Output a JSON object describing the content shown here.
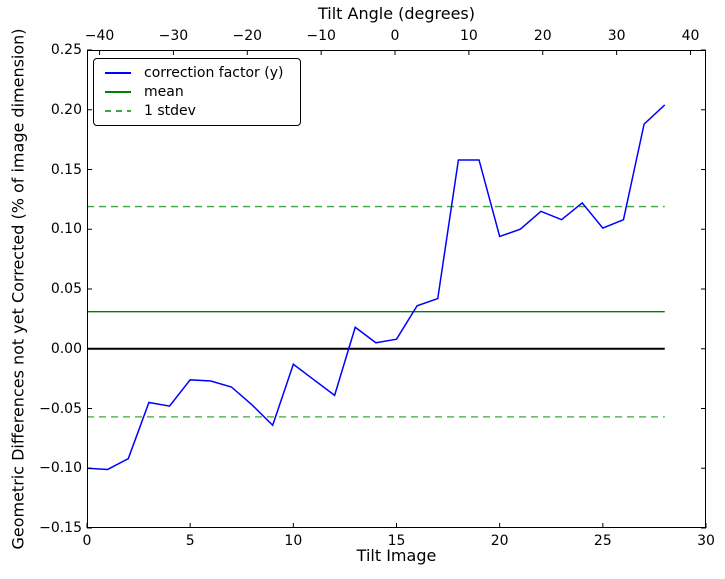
{
  "figure": {
    "top_axis_title": "Tilt Angle (degrees)",
    "x_axis_label": "Tilt Image",
    "y_axis_label": "Geometric Differences not yet Corrected (% of image dimension)",
    "background": "#ffffff"
  },
  "legend": {
    "items": [
      {
        "label": "correction factor (y)",
        "color": "#0000ff",
        "dash": false
      },
      {
        "label": "mean",
        "color": "#008000",
        "dash": false
      },
      {
        "label": "1 stdev",
        "color": "#3fa63f",
        "dash": true
      }
    ]
  },
  "chart_data": {
    "type": "line",
    "title": "Tilt Angle (degrees)",
    "xlabel": "Tilt Image",
    "ylabel": "Geometric Differences not yet Corrected (% of image dimension)",
    "xlim": [
      0,
      30
    ],
    "ylim": [
      -0.15,
      0.25
    ],
    "top_axis_range": [
      -41.7,
      42.1
    ],
    "grid": false,
    "legend_position": "upper left",
    "x": [
      0,
      1,
      2,
      3,
      4,
      5,
      6,
      7,
      8,
      9,
      10,
      11,
      12,
      13,
      14,
      15,
      16,
      17,
      18,
      19,
      20,
      21,
      22,
      23,
      24,
      25,
      26,
      27,
      28
    ],
    "series": [
      {
        "name": "correction factor (y)",
        "color": "#0000ff",
        "style": "solid",
        "width": 1.5,
        "values": [
          -0.1,
          -0.101,
          -0.092,
          -0.045,
          -0.048,
          -0.026,
          -0.027,
          -0.032,
          -0.047,
          -0.064,
          -0.013,
          -0.026,
          -0.039,
          0.018,
          0.005,
          0.008,
          0.036,
          0.042,
          0.158,
          0.158,
          0.094,
          0.1,
          0.115,
          0.108,
          0.122,
          0.101,
          0.108,
          0.188,
          0.204
        ]
      }
    ],
    "hlines": [
      {
        "name": "zero-line",
        "y": 0.0,
        "color": "#000000",
        "style": "solid",
        "width": 2,
        "x_start": 0,
        "x_end": 28
      },
      {
        "name": "mean-line",
        "y": 0.031,
        "color": "#008000",
        "style": "solid",
        "width": 1.3,
        "x_start": 0,
        "x_end": 28
      },
      {
        "name": "mean-plus-1stdev",
        "y": 0.119,
        "color": "#3fa63f",
        "style": "dashed",
        "width": 1.3,
        "x_start": 0,
        "x_end": 28
      },
      {
        "name": "mean-minus-1stdev",
        "y": -0.057,
        "color": "#3fa63f",
        "style": "dashed",
        "width": 1.3,
        "x_start": 0,
        "x_end": 28
      }
    ],
    "stats": {
      "mean": 0.031,
      "stdev": 0.088
    },
    "x_ticks": [
      {
        "label": "0",
        "value": 0
      },
      {
        "label": "5",
        "value": 5
      },
      {
        "label": "10",
        "value": 10
      },
      {
        "label": "15",
        "value": 15
      },
      {
        "label": "20",
        "value": 20
      },
      {
        "label": "25",
        "value": 25
      },
      {
        "label": "30",
        "value": 30
      }
    ],
    "y_ticks": [
      {
        "label": "0.25",
        "value": 0.25
      },
      {
        "label": "0.20",
        "value": 0.2
      },
      {
        "label": "0.15",
        "value": 0.15
      },
      {
        "label": "0.10",
        "value": 0.1
      },
      {
        "label": "0.05",
        "value": 0.05
      },
      {
        "label": "0.00",
        "value": 0.0
      },
      {
        "label": "−0.05",
        "value": -0.05
      },
      {
        "label": "−0.10",
        "value": -0.1
      },
      {
        "label": "−0.15",
        "value": -0.15
      }
    ],
    "top_ticks": [
      {
        "label": "−40",
        "value": -40
      },
      {
        "label": "−30",
        "value": -30
      },
      {
        "label": "−20",
        "value": -20
      },
      {
        "label": "−10",
        "value": -10
      },
      {
        "label": "0",
        "value": 0
      },
      {
        "label": "10",
        "value": 10
      },
      {
        "label": "20",
        "value": 20
      },
      {
        "label": "30",
        "value": 30
      },
      {
        "label": "40",
        "value": 40
      }
    ]
  }
}
